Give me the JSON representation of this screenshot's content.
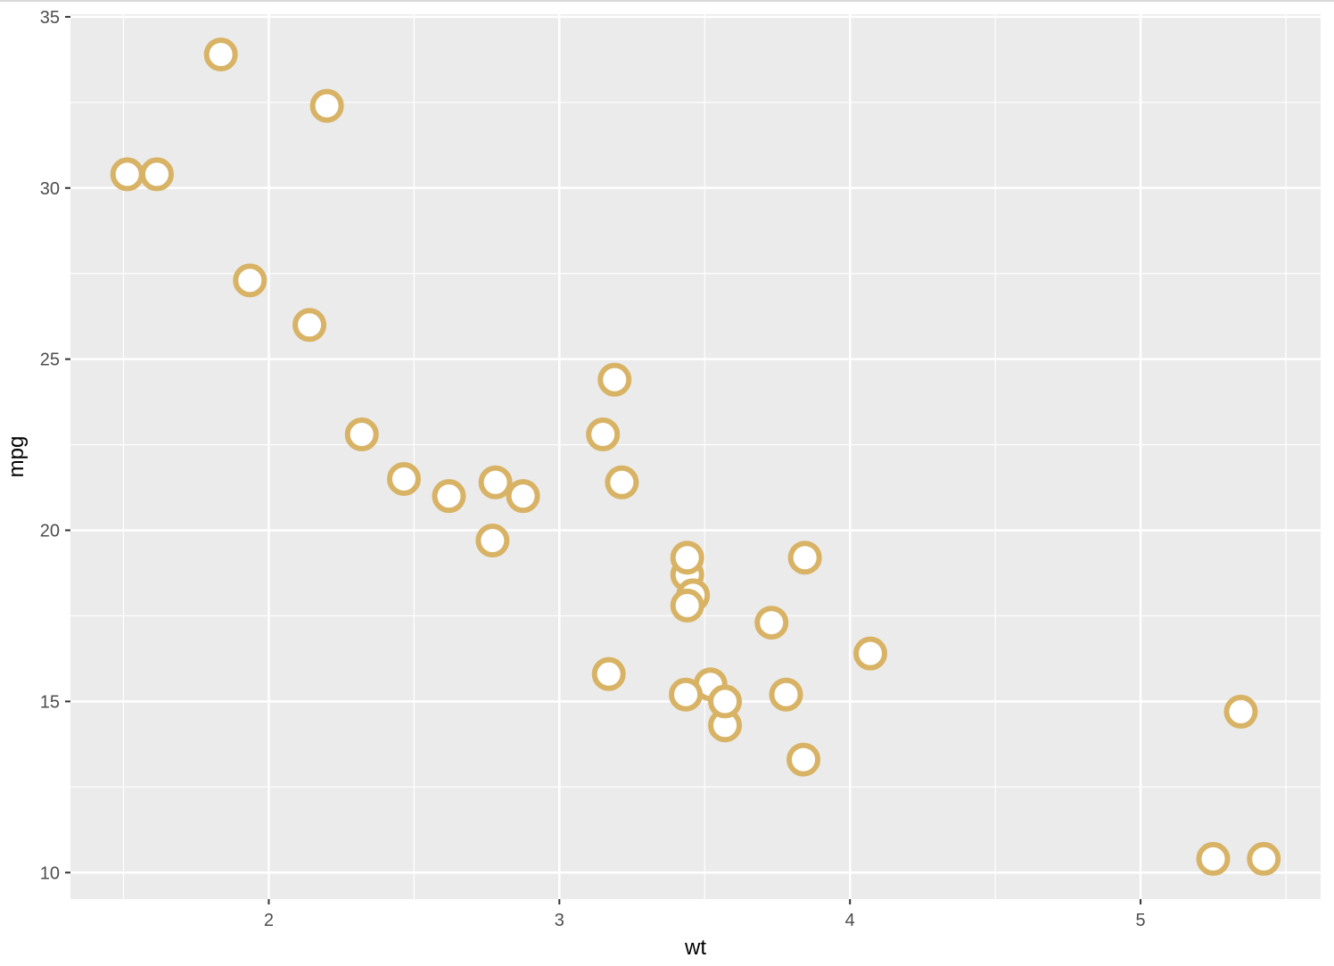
{
  "chart_data": {
    "type": "scatter",
    "x_label": "wt",
    "y_label": "mpg",
    "x": [
      2.62,
      2.875,
      2.32,
      3.215,
      3.44,
      3.46,
      3.57,
      3.19,
      3.15,
      3.44,
      3.44,
      4.07,
      3.73,
      3.78,
      5.25,
      5.424,
      5.345,
      2.2,
      1.615,
      1.835,
      2.465,
      3.52,
      3.435,
      3.84,
      3.845,
      1.935,
      2.14,
      1.513,
      3.17,
      2.77,
      3.57,
      2.78
    ],
    "series": [
      {
        "color": "#d8b365",
        "values": [
          21.0,
          21.0,
          22.8,
          21.4,
          18.7,
          18.1,
          14.3,
          24.4,
          22.8,
          19.2,
          17.8,
          16.4,
          17.3,
          15.2,
          10.4,
          10.4,
          14.7,
          32.4,
          30.4,
          33.9,
          21.5,
          15.5,
          15.2,
          13.3,
          19.2,
          27.3,
          26.0,
          30.4,
          15.8,
          19.7,
          15.0,
          21.4
        ]
      }
    ],
    "xlim": [
      1.3175,
      5.6196
    ],
    "ylim": [
      9.225,
      35.075
    ],
    "xticks": [
      2,
      3,
      4,
      5
    ],
    "yticks": [
      10,
      15,
      20,
      25,
      30,
      35
    ],
    "grid": true
  }
}
